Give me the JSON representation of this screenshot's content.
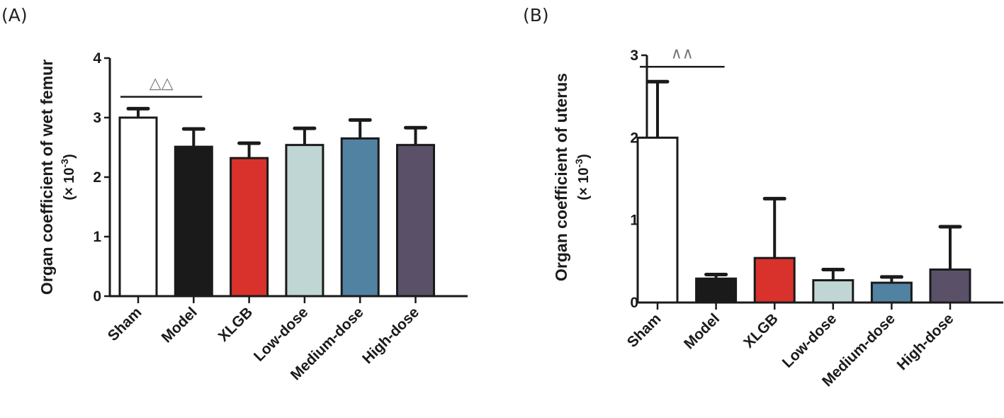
{
  "chart_data": [
    {
      "type": "bar",
      "panel": "(A)",
      "title": "",
      "ylabel": "Organ coefficient of wet femur",
      "ylabel_unit_prefix": "(× 10",
      "ylabel_unit_exp": "-3",
      "ylabel_unit_suffix": ")",
      "xlabel": "",
      "ylim": [
        0,
        4
      ],
      "yticks": [
        "0",
        "1",
        "2",
        "3",
        "4"
      ],
      "categories": [
        "Sham",
        "Model",
        "XLGB",
        "Low-dose",
        "Medium-dose",
        "High-dose"
      ],
      "values": [
        3.0,
        2.51,
        2.32,
        2.54,
        2.65,
        2.54
      ],
      "error_upper": [
        3.15,
        2.81,
        2.57,
        2.82,
        2.96,
        2.83
      ],
      "colors": [
        "#ffffff",
        "#1a1a1a",
        "#d9322c",
        "#c0d6d4",
        "#5182a2",
        "#5a5068"
      ],
      "annotation": {
        "text": "△△",
        "from": "Sham",
        "to": "Model",
        "y": 3.35
      },
      "grid": false,
      "legend": "none"
    },
    {
      "type": "bar",
      "panel": "(B)",
      "title": "",
      "ylabel": "Organ coefficient of uterus",
      "ylabel_unit_prefix": "(× 10",
      "ylabel_unit_exp": "-3",
      "ylabel_unit_suffix": ")",
      "xlabel": "",
      "ylim": [
        0,
        3
      ],
      "yticks": [
        "0",
        "1",
        "2",
        "3"
      ],
      "categories": [
        "Sham",
        "Model",
        "XLGB",
        "Low-dose",
        "Medium-dose",
        "High-dose"
      ],
      "values": [
        2.0,
        0.29,
        0.54,
        0.27,
        0.24,
        0.4
      ],
      "error_upper": [
        2.68,
        0.34,
        1.26,
        0.4,
        0.31,
        0.92
      ],
      "colors": [
        "#ffffff",
        "#1a1a1a",
        "#d9322c",
        "#c0d6d4",
        "#5182a2",
        "#5a5068"
      ],
      "annotation": {
        "text": "∧∧",
        "from": "Sham",
        "to": "Model",
        "y": 2.86
      },
      "grid": false,
      "legend": "none"
    }
  ]
}
